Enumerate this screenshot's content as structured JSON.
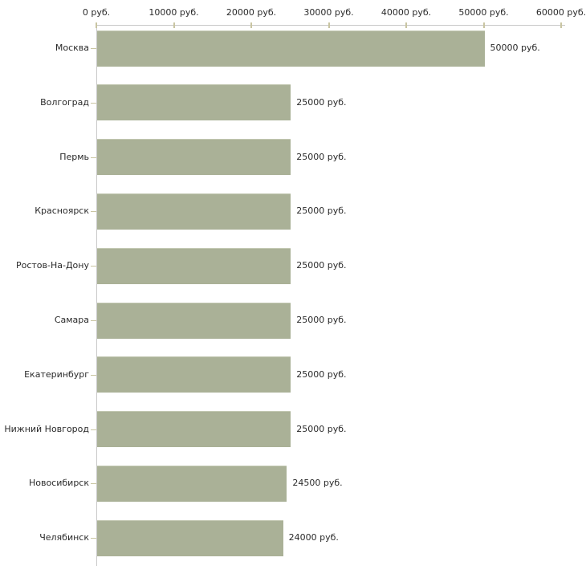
{
  "chart_data": {
    "type": "bar",
    "orientation": "horizontal",
    "title": "",
    "xlabel": "",
    "ylabel": "",
    "unit": "руб.",
    "categories": [
      "Москва",
      "Волгоград",
      "Пермь",
      "Красноярск",
      "Ростов-На-Дону",
      "Самара",
      "Екатеринбург",
      "Нижний Новгород",
      "Новосибирск",
      "Челябинск"
    ],
    "values": [
      50000,
      25000,
      25000,
      25000,
      25000,
      25000,
      25000,
      25000,
      24500,
      24000
    ],
    "value_labels": [
      "50000 руб.",
      "25000 руб.",
      "25000 руб.",
      "25000 руб.",
      "25000 руб.",
      "25000 руб.",
      "25000 руб.",
      "25000 руб.",
      "24500 руб.",
      "24000 руб."
    ],
    "x_tick_values": [
      0,
      10000,
      20000,
      30000,
      40000,
      50000,
      60000
    ],
    "x_tick_labels": [
      "0 руб.",
      "10000 руб.",
      "20000 руб.",
      "30000 руб.",
      "40000 руб.",
      "50000 руб.",
      "60000 руб."
    ],
    "xlim": [
      0,
      60000
    ],
    "grid": false,
    "legend": false,
    "colors": {
      "bar_fill": "#aab197",
      "bar_top_highlight": "#c2c7b1",
      "axis_line": "#c9c9c9",
      "tick_mark": "#c9c5a2",
      "text": "#2a2a2a",
      "background": "#ffffff"
    }
  }
}
